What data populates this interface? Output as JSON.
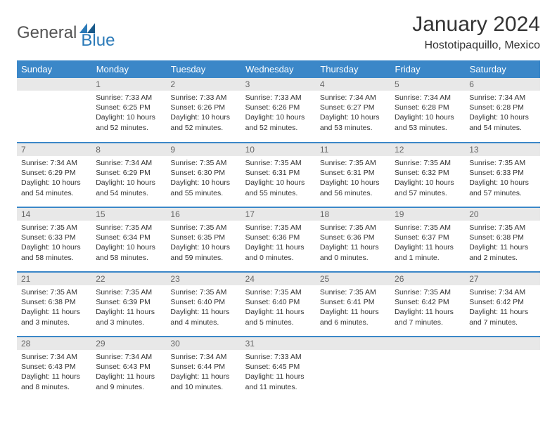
{
  "logo": {
    "part1": "General",
    "part2": "Blue"
  },
  "title": "January 2024",
  "location": "Hostotipaquillo, Mexico",
  "colors": {
    "header_bg": "#3b87c8",
    "header_text": "#ffffff",
    "daynum_bg": "#e8e8e8",
    "daynum_text": "#666666",
    "body_text": "#333333",
    "rule": "#3b87c8",
    "logo_gray": "#555555",
    "logo_blue": "#2b7ab8"
  },
  "weekdays": [
    "Sunday",
    "Monday",
    "Tuesday",
    "Wednesday",
    "Thursday",
    "Friday",
    "Saturday"
  ],
  "start_offset": 1,
  "days": [
    {
      "n": "1",
      "sunrise": "7:33 AM",
      "sunset": "6:25 PM",
      "daylight": "10 hours and 52 minutes."
    },
    {
      "n": "2",
      "sunrise": "7:33 AM",
      "sunset": "6:26 PM",
      "daylight": "10 hours and 52 minutes."
    },
    {
      "n": "3",
      "sunrise": "7:33 AM",
      "sunset": "6:26 PM",
      "daylight": "10 hours and 52 minutes."
    },
    {
      "n": "4",
      "sunrise": "7:34 AM",
      "sunset": "6:27 PM",
      "daylight": "10 hours and 53 minutes."
    },
    {
      "n": "5",
      "sunrise": "7:34 AM",
      "sunset": "6:28 PM",
      "daylight": "10 hours and 53 minutes."
    },
    {
      "n": "6",
      "sunrise": "7:34 AM",
      "sunset": "6:28 PM",
      "daylight": "10 hours and 54 minutes."
    },
    {
      "n": "7",
      "sunrise": "7:34 AM",
      "sunset": "6:29 PM",
      "daylight": "10 hours and 54 minutes."
    },
    {
      "n": "8",
      "sunrise": "7:34 AM",
      "sunset": "6:29 PM",
      "daylight": "10 hours and 54 minutes."
    },
    {
      "n": "9",
      "sunrise": "7:35 AM",
      "sunset": "6:30 PM",
      "daylight": "10 hours and 55 minutes."
    },
    {
      "n": "10",
      "sunrise": "7:35 AM",
      "sunset": "6:31 PM",
      "daylight": "10 hours and 55 minutes."
    },
    {
      "n": "11",
      "sunrise": "7:35 AM",
      "sunset": "6:31 PM",
      "daylight": "10 hours and 56 minutes."
    },
    {
      "n": "12",
      "sunrise": "7:35 AM",
      "sunset": "6:32 PM",
      "daylight": "10 hours and 57 minutes."
    },
    {
      "n": "13",
      "sunrise": "7:35 AM",
      "sunset": "6:33 PM",
      "daylight": "10 hours and 57 minutes."
    },
    {
      "n": "14",
      "sunrise": "7:35 AM",
      "sunset": "6:33 PM",
      "daylight": "10 hours and 58 minutes."
    },
    {
      "n": "15",
      "sunrise": "7:35 AM",
      "sunset": "6:34 PM",
      "daylight": "10 hours and 58 minutes."
    },
    {
      "n": "16",
      "sunrise": "7:35 AM",
      "sunset": "6:35 PM",
      "daylight": "10 hours and 59 minutes."
    },
    {
      "n": "17",
      "sunrise": "7:35 AM",
      "sunset": "6:36 PM",
      "daylight": "11 hours and 0 minutes."
    },
    {
      "n": "18",
      "sunrise": "7:35 AM",
      "sunset": "6:36 PM",
      "daylight": "11 hours and 0 minutes."
    },
    {
      "n": "19",
      "sunrise": "7:35 AM",
      "sunset": "6:37 PM",
      "daylight": "11 hours and 1 minute."
    },
    {
      "n": "20",
      "sunrise": "7:35 AM",
      "sunset": "6:38 PM",
      "daylight": "11 hours and 2 minutes."
    },
    {
      "n": "21",
      "sunrise": "7:35 AM",
      "sunset": "6:38 PM",
      "daylight": "11 hours and 3 minutes."
    },
    {
      "n": "22",
      "sunrise": "7:35 AM",
      "sunset": "6:39 PM",
      "daylight": "11 hours and 3 minutes."
    },
    {
      "n": "23",
      "sunrise": "7:35 AM",
      "sunset": "6:40 PM",
      "daylight": "11 hours and 4 minutes."
    },
    {
      "n": "24",
      "sunrise": "7:35 AM",
      "sunset": "6:40 PM",
      "daylight": "11 hours and 5 minutes."
    },
    {
      "n": "25",
      "sunrise": "7:35 AM",
      "sunset": "6:41 PM",
      "daylight": "11 hours and 6 minutes."
    },
    {
      "n": "26",
      "sunrise": "7:35 AM",
      "sunset": "6:42 PM",
      "daylight": "11 hours and 7 minutes."
    },
    {
      "n": "27",
      "sunrise": "7:34 AM",
      "sunset": "6:42 PM",
      "daylight": "11 hours and 7 minutes."
    },
    {
      "n": "28",
      "sunrise": "7:34 AM",
      "sunset": "6:43 PM",
      "daylight": "11 hours and 8 minutes."
    },
    {
      "n": "29",
      "sunrise": "7:34 AM",
      "sunset": "6:43 PM",
      "daylight": "11 hours and 9 minutes."
    },
    {
      "n": "30",
      "sunrise": "7:34 AM",
      "sunset": "6:44 PM",
      "daylight": "11 hours and 10 minutes."
    },
    {
      "n": "31",
      "sunrise": "7:33 AM",
      "sunset": "6:45 PM",
      "daylight": "11 hours and 11 minutes."
    }
  ],
  "labels": {
    "sunrise": "Sunrise:",
    "sunset": "Sunset:",
    "daylight": "Daylight:"
  }
}
